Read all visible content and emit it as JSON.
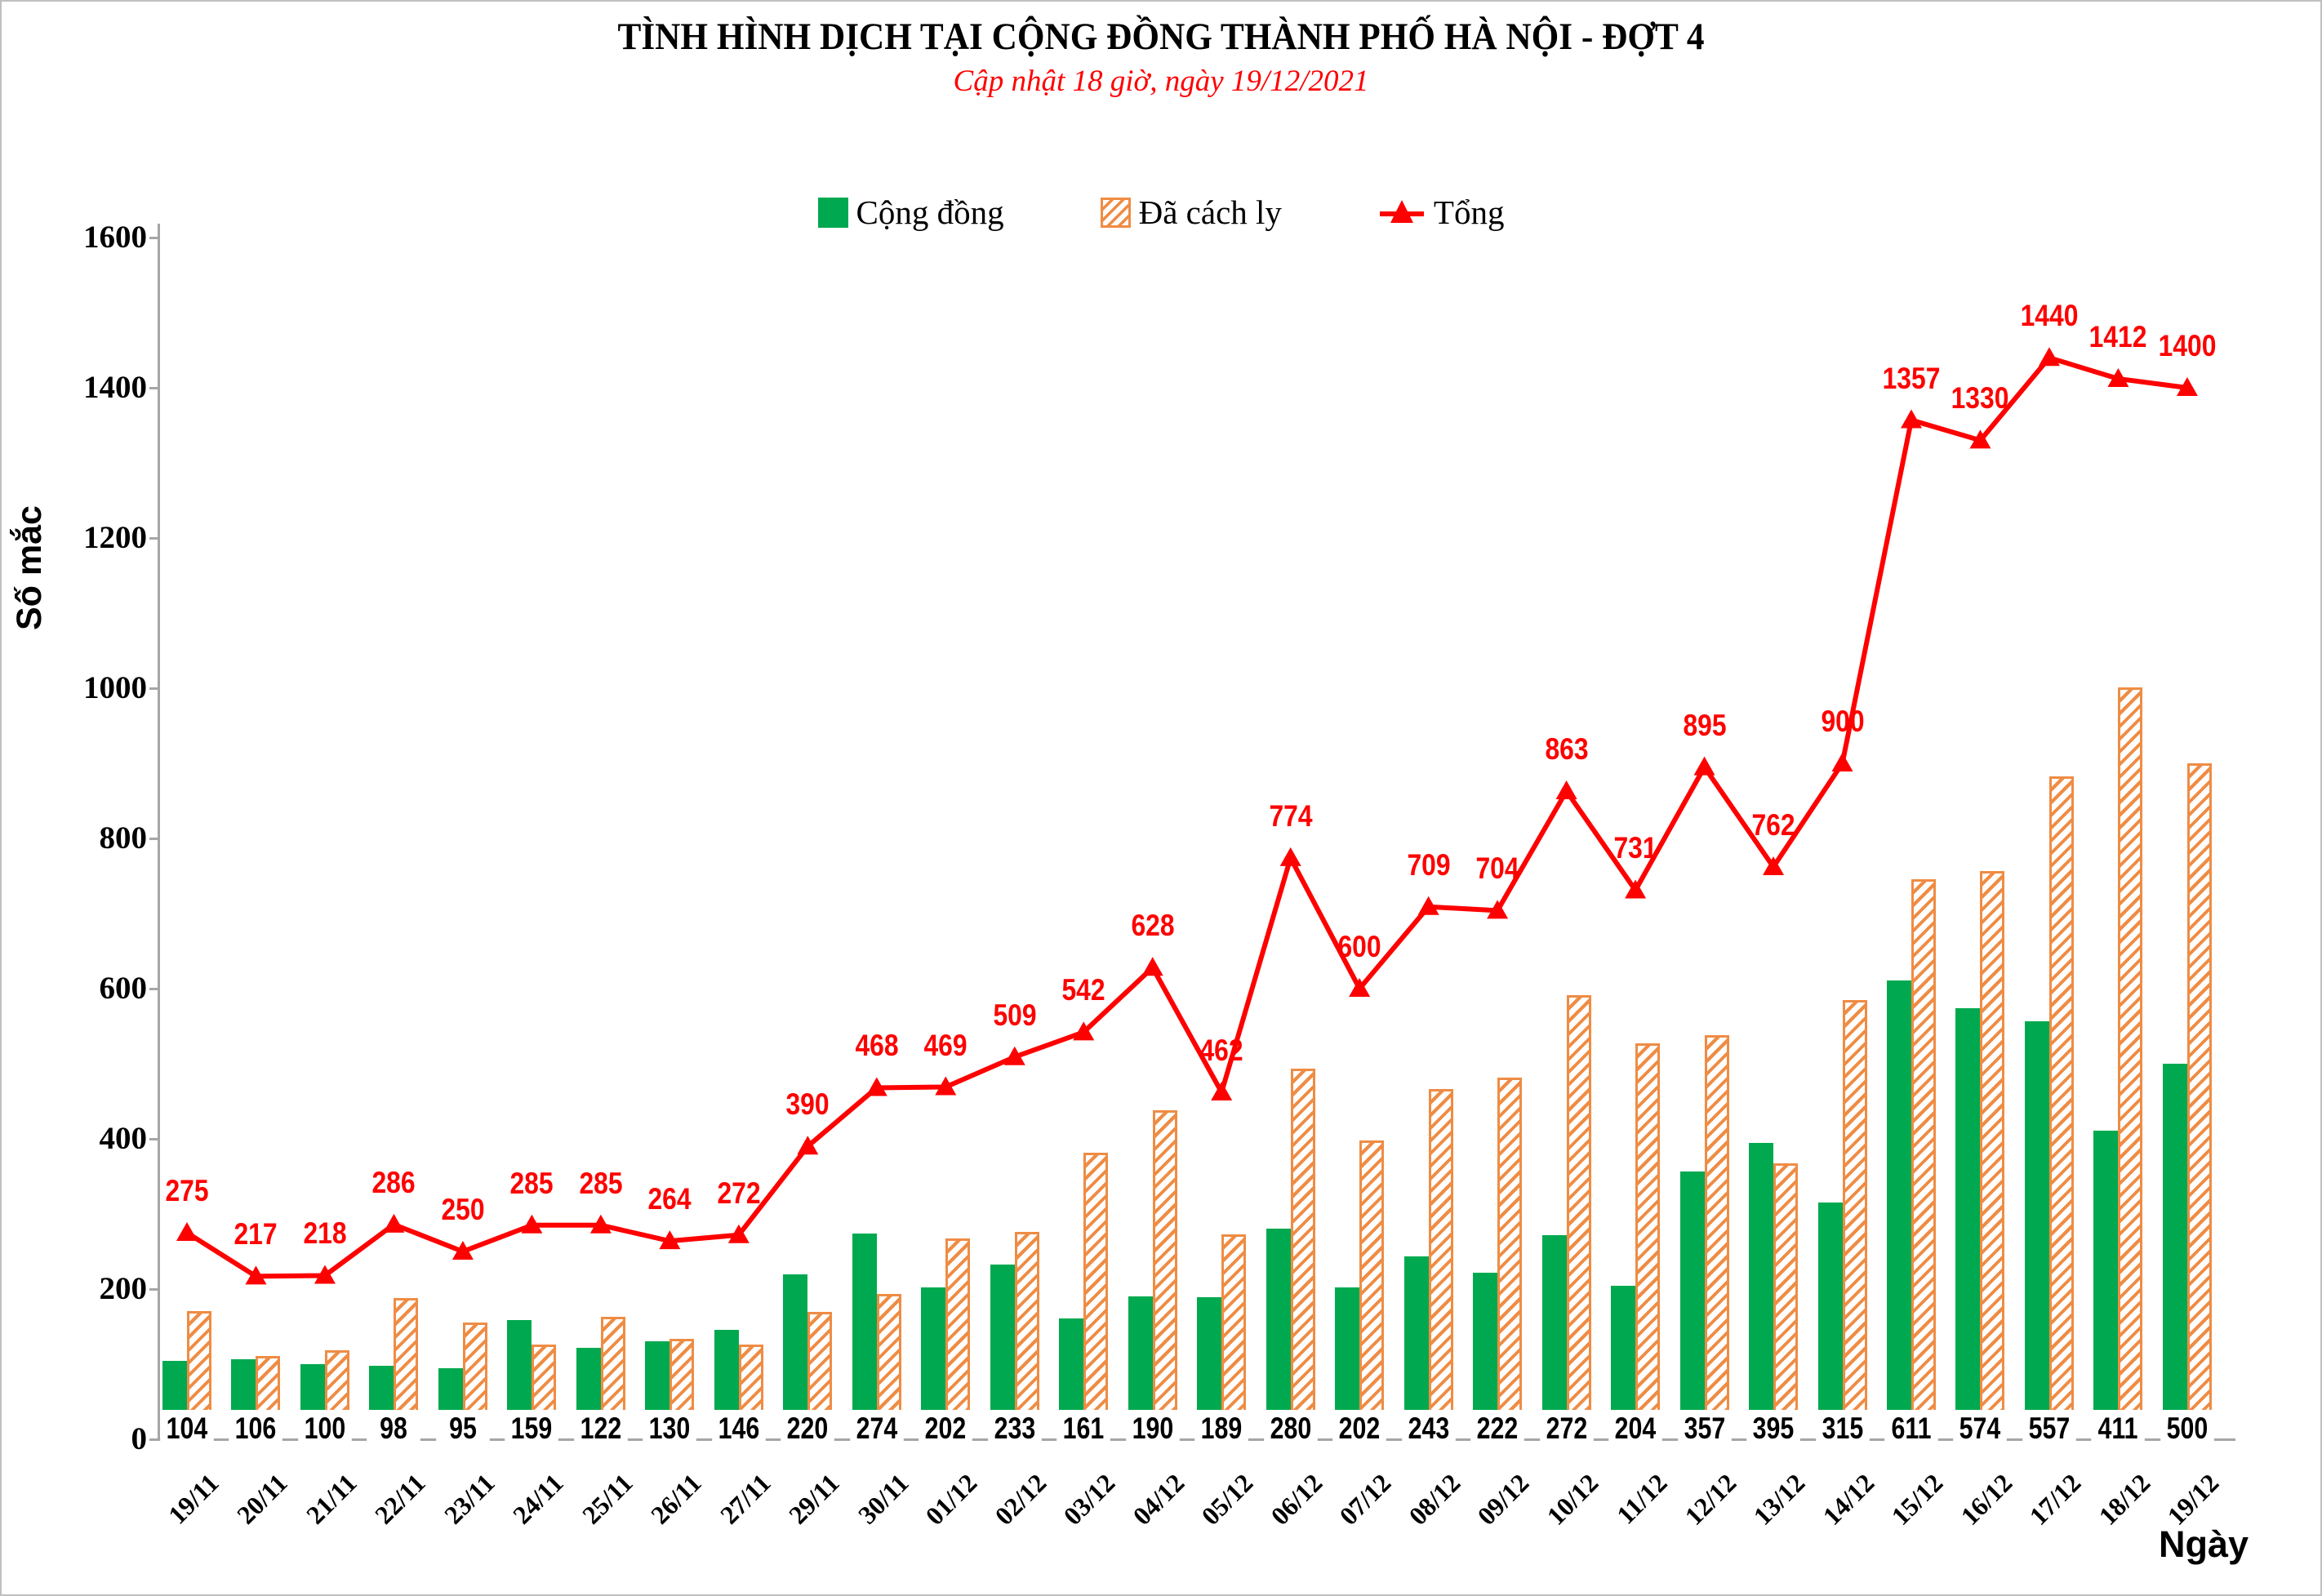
{
  "title": "TÌNH HÌNH DỊCH TẠI CỘNG ĐỒNG THÀNH PHỐ HÀ NỘI - ĐỢT 4",
  "subtitle": "Cập nhật 18 giờ, ngày 19/12/2021",
  "legend": [
    {
      "label": "Cộng đồng",
      "swatch": "green-square"
    },
    {
      "label": "Đã cách ly",
      "swatch": "orange-hatched-square"
    },
    {
      "label": "Tổng",
      "swatch": "red-line-triangle"
    }
  ],
  "colors": {
    "green": "#00a94f",
    "orange": "#ef8c44",
    "red": "#ff0000",
    "axis": "#a6a6a6"
  },
  "chart_data": {
    "type": "bar+line",
    "title": "TÌNH HÌNH DỊCH TẠI CỘNG ĐỒNG THÀNH PHỐ HÀ NỘI - ĐỢT 4",
    "subtitle": "Cập nhật 18 giờ, ngày 19/12/2021",
    "xlabel": "Ngày",
    "ylabel": "Số mắc",
    "ylim": [
      0,
      1600
    ],
    "yticks": [
      0,
      200,
      400,
      600,
      800,
      1000,
      1200,
      1400,
      1600
    ],
    "grid": false,
    "legend_position": "top-center",
    "categories": [
      "19/11",
      "20/11",
      "21/11",
      "22/11",
      "23/11",
      "24/11",
      "25/11",
      "26/11",
      "27/11",
      "29/11",
      "30/11",
      "01/12",
      "02/12",
      "03/12",
      "04/12",
      "05/12",
      "06/12",
      "07/12",
      "08/12",
      "09/12",
      "10/12",
      "11/12",
      "12/12",
      "13/12",
      "14/12",
      "15/12",
      "16/12",
      "17/12",
      "18/12",
      "19/12"
    ],
    "series": [
      {
        "name": "Cộng đồng",
        "type": "bar",
        "color": "#00a94f",
        "values": [
          104,
          106,
          100,
          98,
          95,
          159,
          122,
          130,
          146,
          220,
          274,
          202,
          233,
          161,
          190,
          189,
          280,
          202,
          243,
          222,
          272,
          204,
          357,
          395,
          315,
          611,
          574,
          557,
          411,
          500
        ]
      },
      {
        "name": "Đã cách ly",
        "type": "bar-hatched",
        "color": "#ef8c44",
        "values": [
          171,
          111,
          118,
          188,
          155,
          126,
          163,
          134,
          126,
          170,
          194,
          267,
          276,
          381,
          438,
          273,
          494,
          398,
          466,
          482,
          591,
          527,
          538,
          367,
          585,
          746,
          756,
          883,
          1001,
          900
        ]
      },
      {
        "name": "Tổng",
        "type": "line",
        "color": "#ff0000",
        "marker": "triangle-up",
        "values": [
          275,
          217,
          218,
          286,
          250,
          285,
          285,
          264,
          272,
          390,
          468,
          469,
          509,
          542,
          628,
          462,
          774,
          600,
          709,
          704,
          863,
          731,
          895,
          762,
          900,
          1357,
          1330,
          1440,
          1412,
          1400
        ]
      }
    ]
  }
}
